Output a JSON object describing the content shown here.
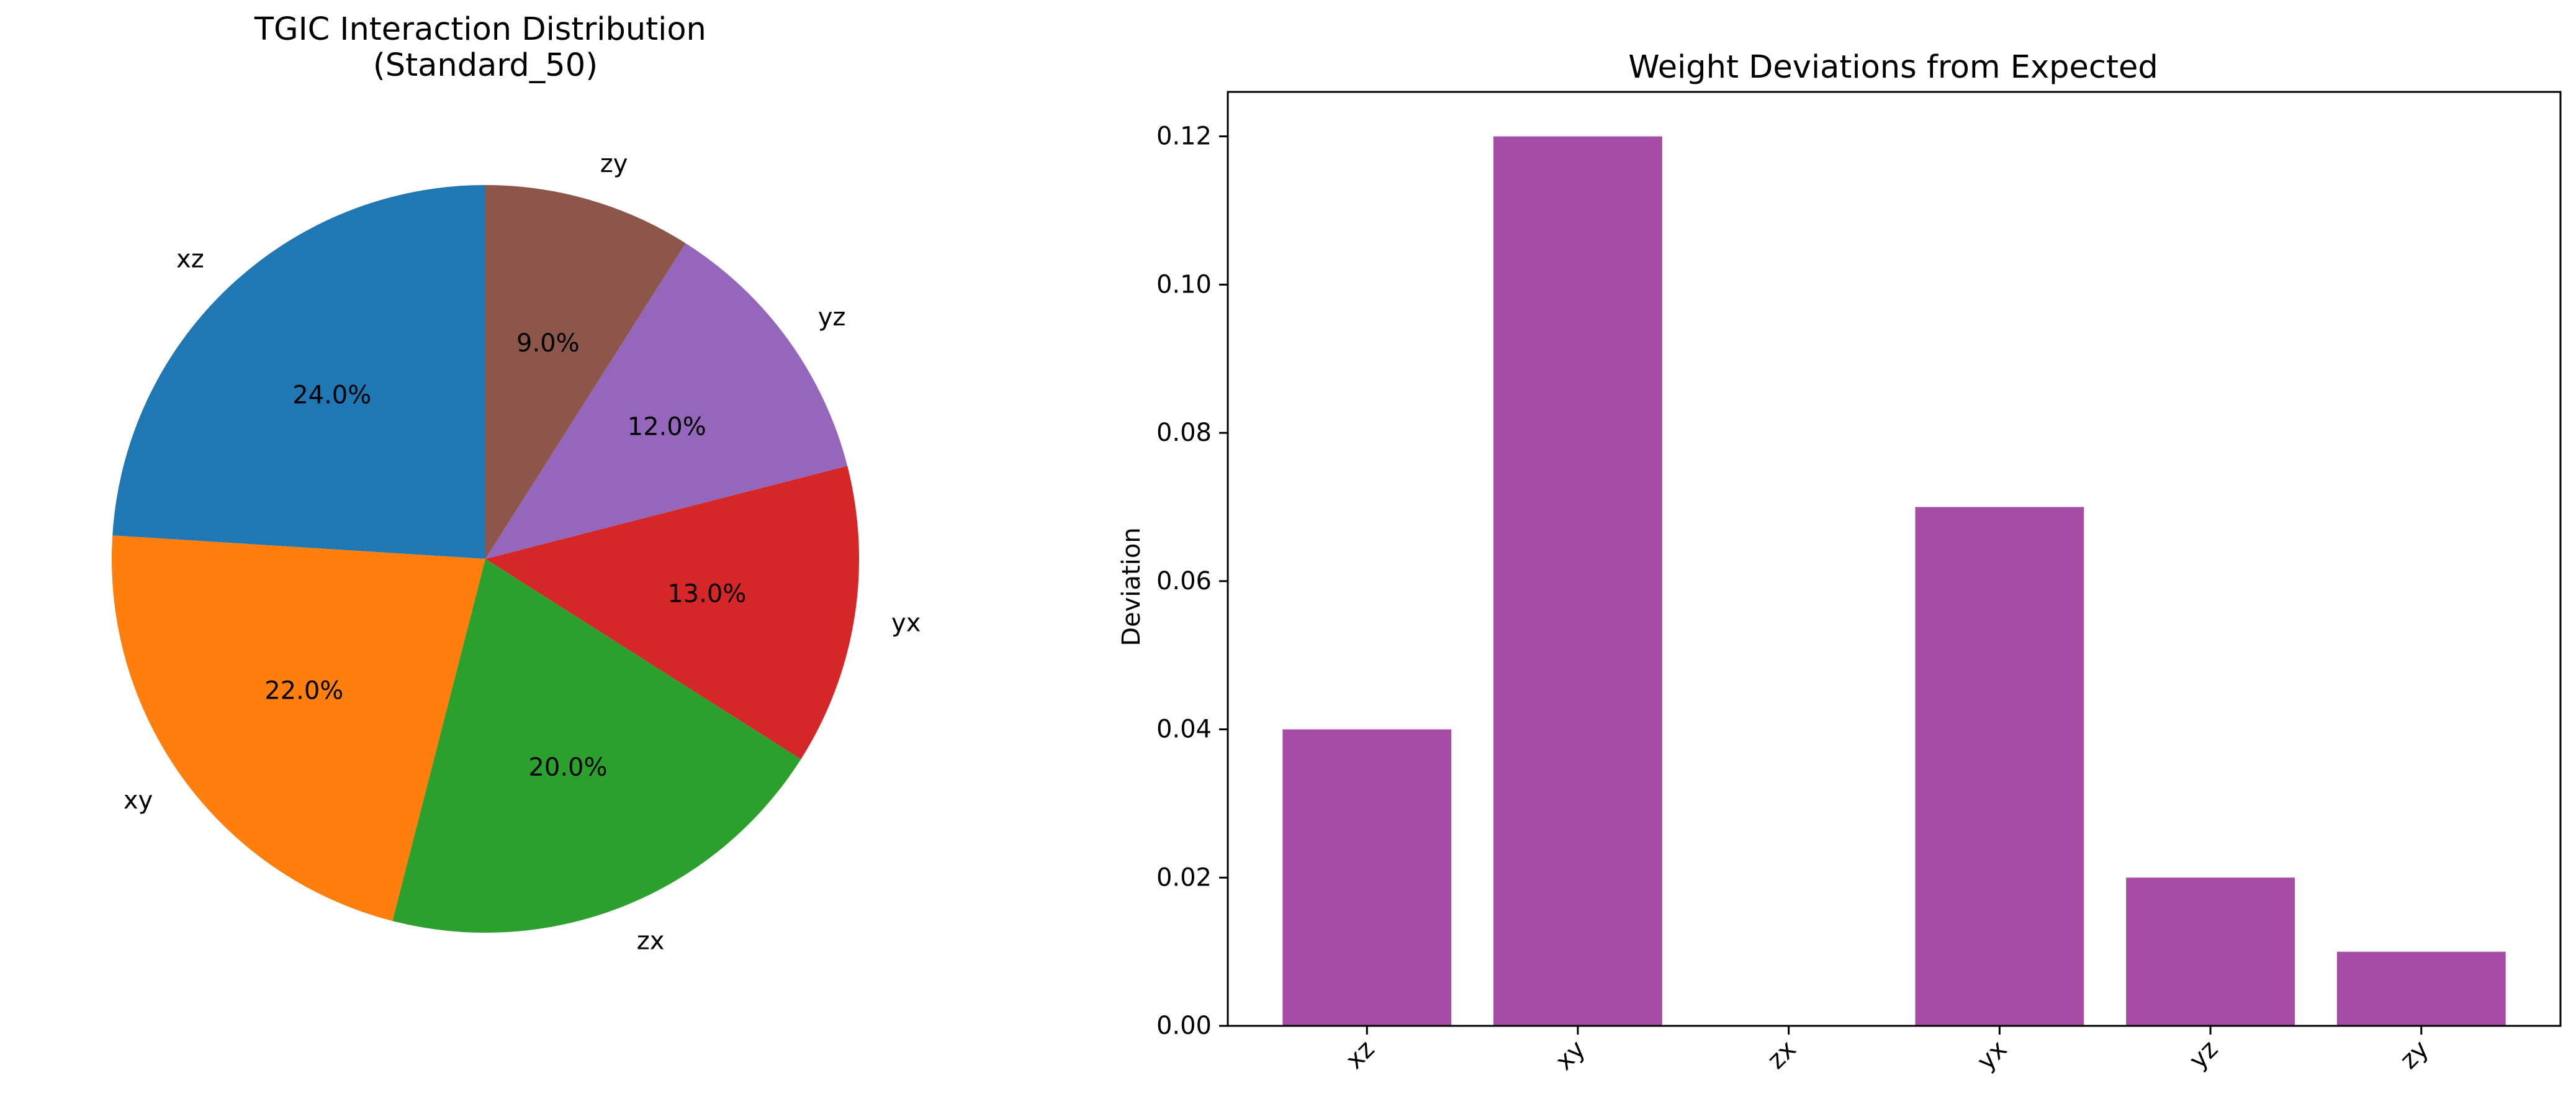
{
  "chart_data": [
    {
      "type": "pie",
      "title": "TGIC Interaction Distribution\n(Standard_50)",
      "start_angle_deg": 90,
      "direction": "counterclockwise",
      "slices": [
        {
          "label": "xz",
          "value": 24.0,
          "pct_label": "24.0%",
          "color": "#1f77b4"
        },
        {
          "label": "xy",
          "value": 22.0,
          "pct_label": "22.0%",
          "color": "#ff7f0e"
        },
        {
          "label": "zx",
          "value": 20.0,
          "pct_label": "20.0%",
          "color": "#2ca02c"
        },
        {
          "label": "yx",
          "value": 13.0,
          "pct_label": "13.0%",
          "color": "#d62728"
        },
        {
          "label": "yz",
          "value": 12.0,
          "pct_label": "12.0%",
          "color": "#9467bd"
        },
        {
          "label": "zy",
          "value": 9.0,
          "pct_label": "9.0%",
          "color": "#8c564b"
        }
      ]
    },
    {
      "type": "bar",
      "title": "Weight Deviations from Expected",
      "xlabel": "",
      "ylabel": "Deviation",
      "categories": [
        "xz",
        "xy",
        "zx",
        "yx",
        "yz",
        "zy"
      ],
      "values": [
        0.04,
        0.12,
        0.0,
        0.07,
        0.02,
        0.01
      ],
      "ylim": [
        0,
        0.126
      ],
      "yticks": [
        0.0,
        0.02,
        0.04,
        0.06,
        0.08,
        0.1,
        0.12
      ],
      "ytick_labels": [
        "0.00",
        "0.02",
        "0.04",
        "0.06",
        "0.08",
        "0.10",
        "0.12"
      ],
      "xtick_rotation_deg": 45,
      "bar_color": "#a44ca6",
      "grid": false
    }
  ]
}
